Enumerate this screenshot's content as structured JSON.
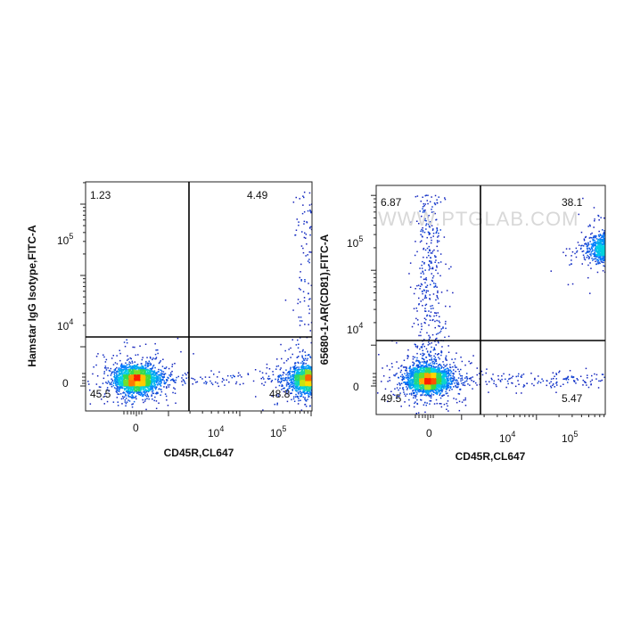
{
  "chart_data": [
    {
      "type": "scatter",
      "subtype": "flow-cytometry-dot-plot",
      "xlabel": "CD45R,CL647",
      "ylabel": "Hamstar IgG Isotype,FITC-A",
      "x_ticks": [
        {
          "base": "0",
          "exp": ""
        },
        {
          "base": "10",
          "exp": "4"
        },
        {
          "base": "10",
          "exp": "5"
        }
      ],
      "y_ticks": [
        {
          "base": "0",
          "exp": ""
        },
        {
          "base": "10",
          "exp": "4"
        },
        {
          "base": "10",
          "exp": "5"
        }
      ],
      "quadrants": {
        "top_left": "1.23",
        "top_right": "4.49",
        "bottom_left": "45.5",
        "bottom_right": "48.8"
      },
      "watermark": "",
      "populations": [
        {
          "x": 0,
          "y": 0,
          "share": 0.46,
          "shape": "dense"
        },
        {
          "x": 100000,
          "y": 0,
          "share": 0.45,
          "shape": "dense"
        },
        {
          "x": 50000,
          "y": 0,
          "share": 0.05,
          "shape": "bridge"
        },
        {
          "x": 100000,
          "y": 100000,
          "share": 0.04,
          "shape": "streak"
        }
      ]
    },
    {
      "type": "scatter",
      "subtype": "flow-cytometry-dot-plot",
      "xlabel": "CD45R,CL647",
      "ylabel": "65680-1-AR(CD81),FITC-A",
      "x_ticks": [
        {
          "base": "0",
          "exp": ""
        },
        {
          "base": "10",
          "exp": "4"
        },
        {
          "base": "10",
          "exp": "5"
        }
      ],
      "y_ticks": [
        {
          "base": "0",
          "exp": ""
        },
        {
          "base": "10",
          "exp": "4"
        },
        {
          "base": "10",
          "exp": "5"
        }
      ],
      "quadrants": {
        "top_left": "6.87",
        "top_right": "38.1",
        "bottom_left": "49.5",
        "bottom_right": "5.47"
      },
      "watermark": "WWW.PTGLAB.COM",
      "populations": [
        {
          "x": 0,
          "y": 0,
          "share": 0.5,
          "shape": "dense"
        },
        {
          "x": 0,
          "y": 10000,
          "share": 0.07,
          "shape": "streak"
        },
        {
          "x": 100000,
          "y": 20000,
          "share": 0.38,
          "shape": "dense"
        },
        {
          "x": 30000,
          "y": 0,
          "share": 0.05,
          "shape": "bridge"
        }
      ]
    }
  ],
  "colors": {
    "density_low": "#1a0aa8",
    "density_mid": "#00c8ff",
    "density_high": "#ffe600",
    "density_peak": "#ff2200",
    "axis": "#222222",
    "gate": "#000000"
  }
}
